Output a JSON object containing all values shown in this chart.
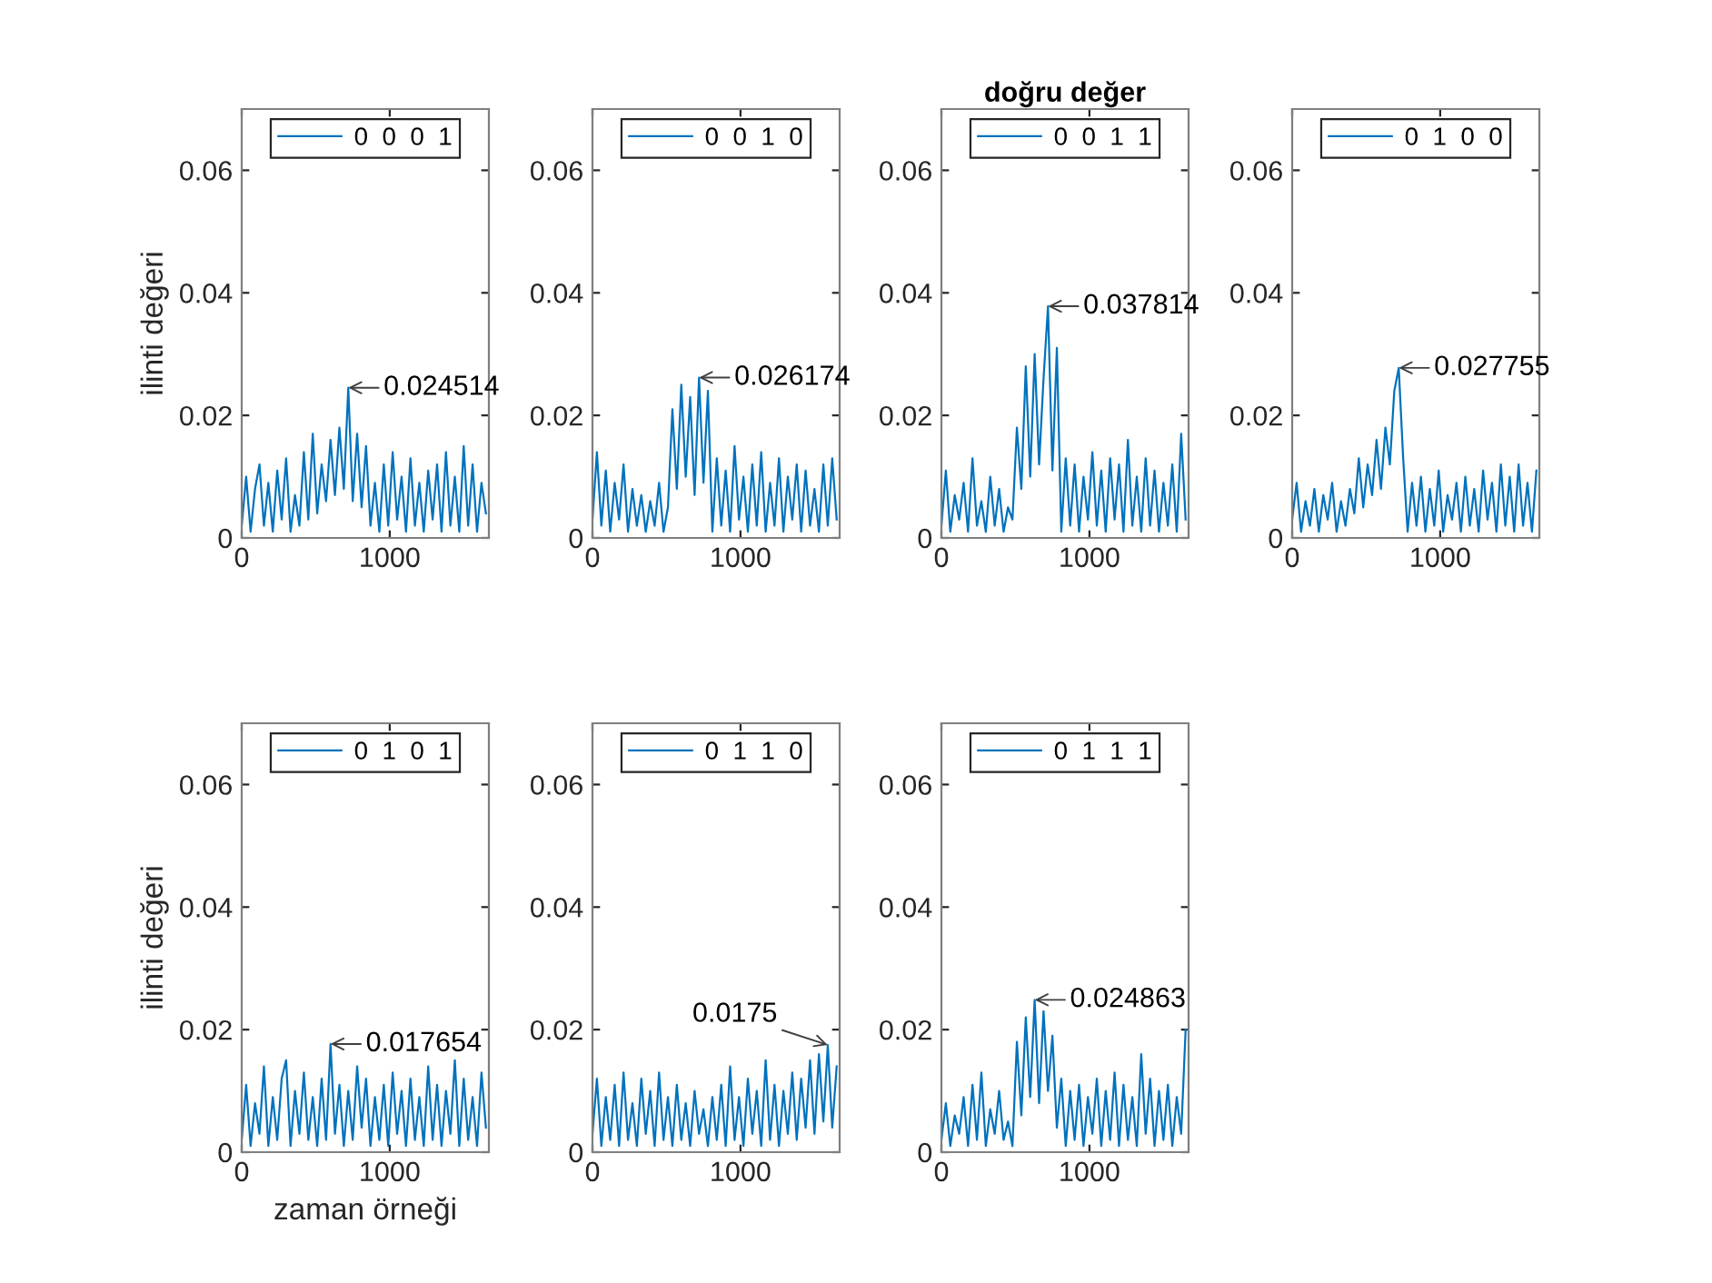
{
  "chart_data": [
    {
      "type": "line",
      "ylabel": "ilinti değeri",
      "xlim": [
        0,
        1670
      ],
      "ylim": [
        0,
        0.07
      ],
      "xticks": [
        0,
        1000
      ],
      "yticks": [
        0,
        0.02,
        0.04,
        0.06
      ],
      "legend": "top",
      "grid": false,
      "annotations": [
        {
          "text": "0.024514",
          "x": 720,
          "y": 0.024514
        }
      ],
      "series": [
        {
          "name": "0  0  0  1",
          "color": "#0072bd",
          "x": [
            0,
            30,
            60,
            90,
            120,
            150,
            180,
            210,
            240,
            270,
            300,
            330,
            360,
            390,
            420,
            450,
            480,
            510,
            540,
            570,
            600,
            630,
            660,
            690,
            720,
            750,
            780,
            810,
            840,
            870,
            900,
            930,
            960,
            990,
            1020,
            1050,
            1080,
            1110,
            1140,
            1170,
            1200,
            1230,
            1260,
            1290,
            1320,
            1350,
            1380,
            1410,
            1440,
            1470,
            1500,
            1530,
            1560,
            1590,
            1620,
            1650
          ],
          "values": [
            0.002,
            0.01,
            0.001,
            0.008,
            0.012,
            0.002,
            0.009,
            0.001,
            0.011,
            0.003,
            0.013,
            0.001,
            0.007,
            0.002,
            0.014,
            0.003,
            0.017,
            0.004,
            0.012,
            0.006,
            0.016,
            0.007,
            0.018,
            0.008,
            0.024514,
            0.006,
            0.017,
            0.005,
            0.015,
            0.002,
            0.009,
            0.001,
            0.012,
            0.002,
            0.014,
            0.003,
            0.01,
            0.001,
            0.013,
            0.002,
            0.009,
            0.001,
            0.011,
            0.003,
            0.012,
            0.001,
            0.014,
            0.002,
            0.01,
            0.001,
            0.015,
            0.002,
            0.012,
            0.001,
            0.009,
            0.004
          ]
        }
      ]
    },
    {
      "type": "line",
      "xlim": [
        0,
        1670
      ],
      "ylim": [
        0,
        0.07
      ],
      "xticks": [
        0,
        1000
      ],
      "yticks": [
        0,
        0.02,
        0.04,
        0.06
      ],
      "legend": "top",
      "grid": false,
      "annotations": [
        {
          "text": "0.026174",
          "x": 720,
          "y": 0.026174
        }
      ],
      "series": [
        {
          "name": "0  0  1  0",
          "color": "#0072bd",
          "x": [
            0,
            30,
            60,
            90,
            120,
            150,
            180,
            210,
            240,
            270,
            300,
            330,
            360,
            390,
            420,
            450,
            480,
            510,
            540,
            570,
            600,
            630,
            660,
            690,
            720,
            750,
            780,
            810,
            840,
            870,
            900,
            930,
            960,
            990,
            1020,
            1050,
            1080,
            1110,
            1140,
            1170,
            1200,
            1230,
            1260,
            1290,
            1320,
            1350,
            1380,
            1410,
            1440,
            1470,
            1500,
            1530,
            1560,
            1590,
            1620,
            1650
          ],
          "values": [
            0.003,
            0.014,
            0.002,
            0.011,
            0.001,
            0.009,
            0.003,
            0.012,
            0.001,
            0.008,
            0.002,
            0.007,
            0.001,
            0.006,
            0.002,
            0.009,
            0.001,
            0.005,
            0.021,
            0.008,
            0.025,
            0.01,
            0.023,
            0.007,
            0.026174,
            0.009,
            0.024,
            0.001,
            0.013,
            0.002,
            0.011,
            0.001,
            0.015,
            0.003,
            0.01,
            0.001,
            0.012,
            0.002,
            0.014,
            0.001,
            0.009,
            0.002,
            0.013,
            0.001,
            0.01,
            0.003,
            0.012,
            0.001,
            0.011,
            0.002,
            0.008,
            0.001,
            0.012,
            0.002,
            0.013,
            0.003
          ]
        }
      ]
    },
    {
      "type": "line",
      "title": "doğru değer",
      "xlim": [
        0,
        1670
      ],
      "ylim": [
        0,
        0.07
      ],
      "xticks": [
        0,
        1000
      ],
      "yticks": [
        0,
        0.02,
        0.04,
        0.06
      ],
      "legend": "top",
      "grid": false,
      "annotations": [
        {
          "text": "0.037814",
          "x": 720,
          "y": 0.037814
        }
      ],
      "series": [
        {
          "name": "0  0  1  1",
          "color": "#0072bd",
          "x": [
            0,
            30,
            60,
            90,
            120,
            150,
            180,
            210,
            240,
            270,
            300,
            330,
            360,
            390,
            420,
            450,
            480,
            510,
            540,
            570,
            600,
            630,
            660,
            690,
            720,
            750,
            780,
            810,
            840,
            870,
            900,
            930,
            960,
            990,
            1020,
            1050,
            1080,
            1110,
            1140,
            1170,
            1200,
            1230,
            1260,
            1290,
            1320,
            1350,
            1380,
            1410,
            1440,
            1470,
            1500,
            1530,
            1560,
            1590,
            1620,
            1650
          ],
          "values": [
            0.002,
            0.011,
            0.001,
            0.007,
            0.003,
            0.009,
            0.001,
            0.013,
            0.002,
            0.006,
            0.001,
            0.01,
            0.002,
            0.008,
            0.001,
            0.005,
            0.003,
            0.018,
            0.008,
            0.028,
            0.01,
            0.03,
            0.012,
            0.026,
            0.037814,
            0.011,
            0.031,
            0.001,
            0.013,
            0.002,
            0.012,
            0.001,
            0.01,
            0.003,
            0.014,
            0.002,
            0.011,
            0.001,
            0.013,
            0.003,
            0.012,
            0.001,
            0.016,
            0.002,
            0.01,
            0.001,
            0.013,
            0.002,
            0.011,
            0.001,
            0.009,
            0.002,
            0.012,
            0.001,
            0.017,
            0.003
          ]
        }
      ]
    },
    {
      "type": "line",
      "xlim": [
        0,
        1670
      ],
      "ylim": [
        0,
        0.07
      ],
      "xticks": [
        0,
        1000
      ],
      "yticks": [
        0,
        0.02,
        0.04,
        0.06
      ],
      "legend": "top",
      "grid": false,
      "annotations": [
        {
          "text": "0.027755",
          "x": 720,
          "y": 0.027755
        }
      ],
      "series": [
        {
          "name": "0  1  0  0",
          "color": "#0072bd",
          "x": [
            0,
            30,
            60,
            90,
            120,
            150,
            180,
            210,
            240,
            270,
            300,
            330,
            360,
            390,
            420,
            450,
            480,
            510,
            540,
            570,
            600,
            630,
            660,
            690,
            720,
            750,
            780,
            810,
            840,
            870,
            900,
            930,
            960,
            990,
            1020,
            1050,
            1080,
            1110,
            1140,
            1170,
            1200,
            1230,
            1260,
            1290,
            1320,
            1350,
            1380,
            1410,
            1440,
            1470,
            1500,
            1530,
            1560,
            1590,
            1620,
            1650
          ],
          "values": [
            0.003,
            0.009,
            0.001,
            0.006,
            0.002,
            0.008,
            0.001,
            0.007,
            0.003,
            0.009,
            0.001,
            0.006,
            0.002,
            0.008,
            0.004,
            0.013,
            0.005,
            0.012,
            0.007,
            0.016,
            0.008,
            0.018,
            0.012,
            0.024,
            0.027755,
            0.013,
            0.001,
            0.009,
            0.002,
            0.01,
            0.001,
            0.008,
            0.002,
            0.011,
            0.001,
            0.007,
            0.003,
            0.009,
            0.001,
            0.01,
            0.002,
            0.008,
            0.001,
            0.011,
            0.003,
            0.009,
            0.001,
            0.012,
            0.002,
            0.01,
            0.001,
            0.012,
            0.002,
            0.009,
            0.001,
            0.011
          ]
        }
      ]
    },
    {
      "type": "line",
      "xlabel": "zaman örneği",
      "ylabel": "ilinti değeri",
      "xlim": [
        0,
        1670
      ],
      "ylim": [
        0,
        0.07
      ],
      "xticks": [
        0,
        1000
      ],
      "yticks": [
        0,
        0.02,
        0.04,
        0.06
      ],
      "legend": "top",
      "grid": false,
      "annotations": [
        {
          "text": "0.017654",
          "x": 600,
          "y": 0.017654
        }
      ],
      "series": [
        {
          "name": "0  1  0  1",
          "color": "#0072bd",
          "x": [
            0,
            30,
            60,
            90,
            120,
            150,
            180,
            210,
            240,
            270,
            300,
            330,
            360,
            390,
            420,
            450,
            480,
            510,
            540,
            570,
            600,
            630,
            660,
            690,
            720,
            750,
            780,
            810,
            840,
            870,
            900,
            930,
            960,
            990,
            1020,
            1050,
            1080,
            1110,
            1140,
            1170,
            1200,
            1230,
            1260,
            1290,
            1320,
            1350,
            1380,
            1410,
            1440,
            1470,
            1500,
            1530,
            1560,
            1590,
            1620,
            1650
          ],
          "values": [
            0.002,
            0.011,
            0.001,
            0.008,
            0.003,
            0.014,
            0.001,
            0.009,
            0.002,
            0.012,
            0.015,
            0.001,
            0.01,
            0.003,
            0.013,
            0.002,
            0.009,
            0.001,
            0.012,
            0.002,
            0.017654,
            0.003,
            0.011,
            0.001,
            0.01,
            0.002,
            0.014,
            0.004,
            0.012,
            0.001,
            0.009,
            0.002,
            0.011,
            0.001,
            0.013,
            0.003,
            0.01,
            0.001,
            0.012,
            0.002,
            0.009,
            0.001,
            0.014,
            0.002,
            0.011,
            0.001,
            0.01,
            0.003,
            0.015,
            0.001,
            0.012,
            0.002,
            0.009,
            0.001,
            0.013,
            0.004
          ]
        }
      ]
    },
    {
      "type": "line",
      "xlim": [
        0,
        1670
      ],
      "ylim": [
        0,
        0.07
      ],
      "xticks": [
        0,
        1000
      ],
      "yticks": [
        0,
        0.02,
        0.04,
        0.06
      ],
      "legend": "top",
      "grid": false,
      "annotations": [
        {
          "text": "0.0175",
          "x": 1590,
          "y": 0.0175
        }
      ],
      "series": [
        {
          "name": "0  1  1  0",
          "color": "#0072bd",
          "x": [
            0,
            30,
            60,
            90,
            120,
            150,
            180,
            210,
            240,
            270,
            300,
            330,
            360,
            390,
            420,
            450,
            480,
            510,
            540,
            570,
            600,
            630,
            660,
            690,
            720,
            750,
            780,
            810,
            840,
            870,
            900,
            930,
            960,
            990,
            1020,
            1050,
            1080,
            1110,
            1140,
            1170,
            1200,
            1230,
            1260,
            1290,
            1320,
            1350,
            1380,
            1410,
            1440,
            1470,
            1500,
            1530,
            1560,
            1590,
            1620,
            1650
          ],
          "values": [
            0.003,
            0.012,
            0.001,
            0.009,
            0.002,
            0.011,
            0.001,
            0.013,
            0.002,
            0.008,
            0.001,
            0.012,
            0.003,
            0.01,
            0.001,
            0.013,
            0.002,
            0.009,
            0.001,
            0.011,
            0.002,
            0.008,
            0.001,
            0.01,
            0.003,
            0.007,
            0.001,
            0.009,
            0.002,
            0.011,
            0.001,
            0.014,
            0.002,
            0.009,
            0.001,
            0.012,
            0.003,
            0.01,
            0.001,
            0.015,
            0.002,
            0.011,
            0.001,
            0.01,
            0.003,
            0.013,
            0.002,
            0.012,
            0.004,
            0.015,
            0.003,
            0.016,
            0.005,
            0.0175,
            0.004,
            0.014
          ]
        }
      ]
    },
    {
      "type": "line",
      "xlim": [
        0,
        1670
      ],
      "ylim": [
        0,
        0.07
      ],
      "xticks": [
        0,
        1000
      ],
      "yticks": [
        0,
        0.02,
        0.04,
        0.06
      ],
      "legend": "top",
      "grid": false,
      "annotations": [
        {
          "text": "0.024863",
          "x": 630,
          "y": 0.024863
        }
      ],
      "series": [
        {
          "name": "0  1  1  1",
          "color": "#0072bd",
          "x": [
            0,
            30,
            60,
            90,
            120,
            150,
            180,
            210,
            240,
            270,
            300,
            330,
            360,
            390,
            420,
            450,
            480,
            510,
            540,
            570,
            600,
            630,
            660,
            690,
            720,
            750,
            780,
            810,
            840,
            870,
            900,
            930,
            960,
            990,
            1020,
            1050,
            1080,
            1110,
            1140,
            1170,
            1200,
            1230,
            1260,
            1290,
            1320,
            1350,
            1380,
            1410,
            1440,
            1470,
            1500,
            1530,
            1560,
            1590,
            1620,
            1650
          ],
          "values": [
            0.002,
            0.008,
            0.001,
            0.006,
            0.003,
            0.009,
            0.001,
            0.011,
            0.002,
            0.013,
            0.001,
            0.007,
            0.003,
            0.01,
            0.002,
            0.005,
            0.001,
            0.018,
            0.006,
            0.022,
            0.009,
            0.024863,
            0.008,
            0.023,
            0.01,
            0.019,
            0.004,
            0.012,
            0.001,
            0.01,
            0.002,
            0.011,
            0.001,
            0.009,
            0.003,
            0.012,
            0.001,
            0.01,
            0.002,
            0.013,
            0.001,
            0.011,
            0.002,
            0.009,
            0.001,
            0.016,
            0.003,
            0.012,
            0.001,
            0.01,
            0.002,
            0.011,
            0.001,
            0.009,
            0.003,
            0.02
          ]
        }
      ]
    }
  ]
}
